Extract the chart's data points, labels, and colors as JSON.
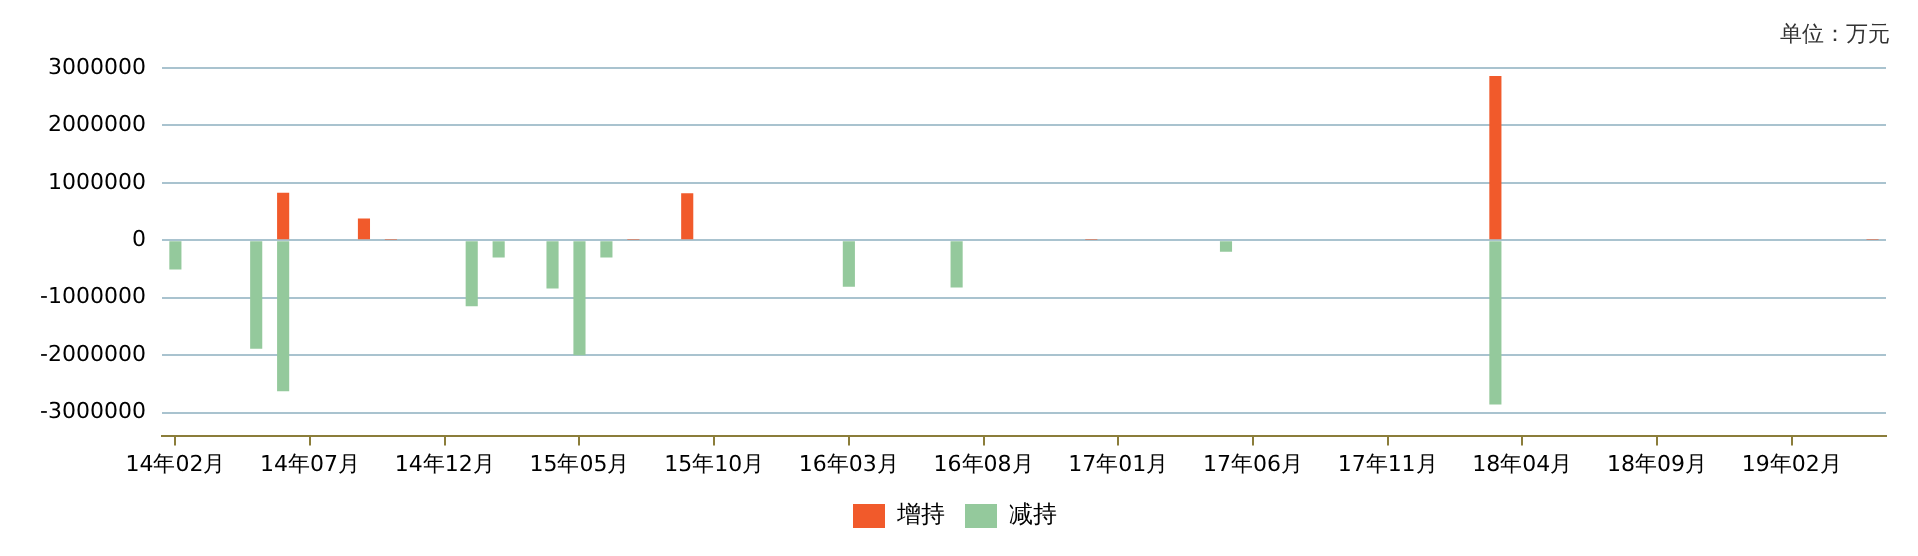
{
  "chart_data": {
    "type": "bar",
    "stacked": true,
    "categories": [
      "14年02月",
      null,
      null,
      null,
      null,
      "14年07月",
      null,
      null,
      null,
      null,
      "14年12月",
      null,
      null,
      null,
      null,
      "15年05月",
      null,
      null,
      null,
      null,
      "15年10月",
      null,
      null,
      null,
      null,
      "16年03月",
      null,
      null,
      null,
      null,
      "16年08月",
      null,
      null,
      null,
      null,
      "17年01月",
      null,
      null,
      null,
      null,
      "17年06月",
      null,
      null,
      null,
      null,
      "17年11月",
      null,
      null,
      null,
      null,
      "18年04月",
      null,
      null,
      null,
      null,
      "18年09月",
      null,
      null,
      null,
      null,
      "19年02月",
      null,
      null,
      null
    ],
    "series": [
      {
        "name": "增持",
        "color": "#f15a2b",
        "values": [
          null,
          null,
          null,
          null,
          830000,
          null,
          null,
          380000,
          10000,
          null,
          null,
          null,
          null,
          null,
          null,
          null,
          null,
          10000,
          null,
          820000,
          null,
          null,
          null,
          null,
          null,
          null,
          null,
          null,
          null,
          null,
          null,
          null,
          null,
          null,
          10000,
          null,
          null,
          null,
          null,
          null,
          null,
          null,
          null,
          null,
          null,
          null,
          null,
          null,
          null,
          2860000,
          null,
          null,
          null,
          null,
          null,
          null,
          null,
          null,
          null,
          null,
          null,
          null,
          null,
          10000
        ]
      },
      {
        "name": "减持",
        "color": "#94c99c",
        "values": [
          -510000,
          null,
          null,
          -1890000,
          -2630000,
          null,
          null,
          null,
          null,
          null,
          null,
          -1150000,
          -300000,
          null,
          -840000,
          -2000000,
          -300000,
          null,
          null,
          null,
          null,
          null,
          null,
          null,
          null,
          -810000,
          null,
          null,
          null,
          -820000,
          null,
          null,
          null,
          null,
          null,
          null,
          null,
          null,
          null,
          -200000,
          null,
          null,
          null,
          null,
          null,
          null,
          null,
          null,
          null,
          -2860000,
          null,
          null,
          null,
          null,
          null,
          null,
          null,
          null,
          null,
          null,
          null,
          null,
          null,
          null
        ]
      }
    ],
    "ylim": [
      -3400000,
      3000000
    ],
    "yticks": [
      -3000000,
      -2000000,
      -1000000,
      0,
      1000000,
      2000000,
      3000000
    ],
    "grid": "y",
    "legend": "bottom",
    "annotations": [
      "单位：万元"
    ]
  }
}
